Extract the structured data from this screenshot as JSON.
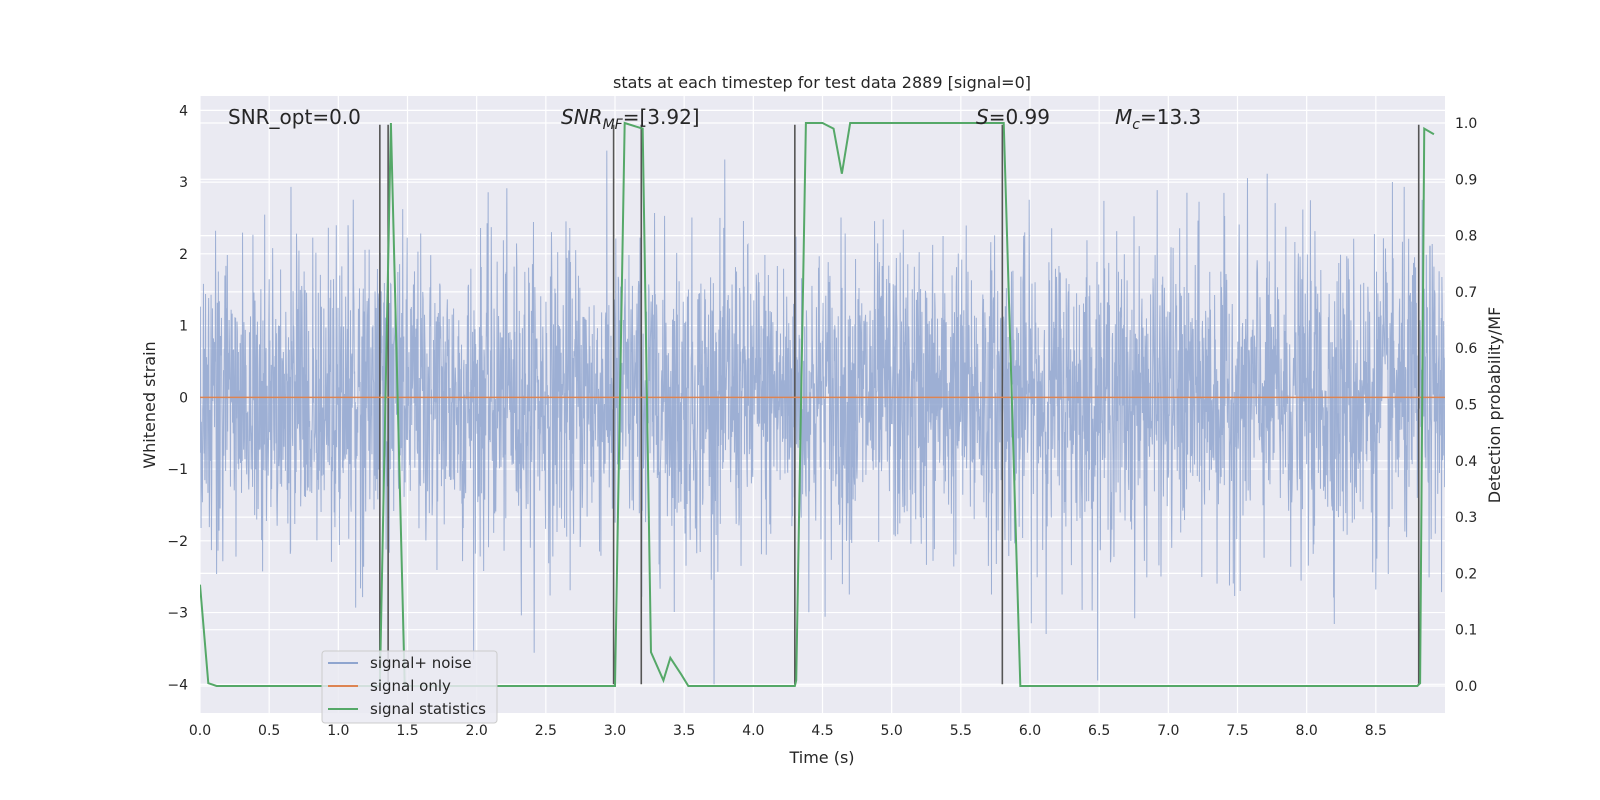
{
  "chart_data": {
    "type": "line",
    "title": "stats at each timestep for test data 2889 [signal=0]",
    "xlabel": "Time (s)",
    "ylabel": "Whitened strain",
    "y2label": "Detection probability/MF",
    "xlim": [
      0,
      9
    ],
    "ylim": [
      -4.4,
      4.2
    ],
    "y2lim": [
      -0.048,
      1.048
    ],
    "xticks": [
      "0.0",
      "0.5",
      "1.0",
      "1.5",
      "2.0",
      "2.5",
      "3.0",
      "3.5",
      "4.0",
      "4.5",
      "5.0",
      "5.5",
      "6.0",
      "6.5",
      "7.0",
      "7.5",
      "8.0",
      "8.5"
    ],
    "yticks": [
      "4",
      "3",
      "2",
      "1",
      "0",
      "−1",
      "−2",
      "−3",
      "−4"
    ],
    "y2ticks": [
      "1.0",
      "0.9",
      "0.8",
      "0.7",
      "0.6",
      "0.5",
      "0.4",
      "0.3",
      "0.2",
      "0.1",
      "0.0"
    ],
    "grid": true,
    "legend_position": "lower-left",
    "annotations": {
      "snr_opt": "SNR_opt=0.0",
      "snr_mf_base": "SNR",
      "snr_mf_sub": "MF",
      "snr_mf_value": "=[3.92]",
      "s_base": "S",
      "s_value": "=0.99",
      "mc_base": "M",
      "mc_sub": "c",
      "mc_value": "=13.3"
    },
    "series": [
      {
        "name": "signal+ noise",
        "axis": "left",
        "color": "#8fa5cf",
        "style": "noise",
        "amplitude_sd": 1.05,
        "range": [
          -4.0,
          3.75
        ]
      },
      {
        "name": "signal only",
        "axis": "left",
        "color": "#dd8452",
        "x": [
          0,
          9
        ],
        "y": [
          0,
          0
        ]
      },
      {
        "name": "signal statistics",
        "axis": "right",
        "color": "#55a868",
        "x": [
          0.0,
          0.06,
          0.12,
          0.2,
          1.2,
          1.3,
          1.38,
          1.45,
          1.48,
          1.55,
          2.95,
          3.0,
          3.07,
          3.2,
          3.26,
          3.35,
          3.4,
          3.48,
          3.53,
          3.8,
          4.3,
          4.31,
          4.38,
          4.5,
          4.58,
          4.64,
          4.7,
          5.0,
          5.8,
          5.81,
          5.93,
          8.8,
          8.82,
          8.85,
          8.92
        ],
        "y": [
          0.18,
          0.005,
          0.0,
          0.0,
          0.0,
          0.0,
          1.0,
          0.3,
          0.0,
          0.0,
          0.0,
          0.0,
          1.0,
          0.99,
          0.06,
          0.01,
          0.05,
          0.02,
          0.0,
          0.0,
          0.0,
          0.01,
          1.0,
          1.0,
          0.99,
          0.91,
          1.0,
          1.0,
          1.0,
          1.0,
          0.0,
          0.0,
          0.005,
          0.99,
          0.98
        ]
      }
    ],
    "vertical_lines": {
      "color": "#555555",
      "x": [
        1.3,
        1.36,
        2.99,
        3.19,
        4.3,
        5.8,
        8.81
      ],
      "y_top": 3.8,
      "y_bottom": -4.0
    }
  }
}
